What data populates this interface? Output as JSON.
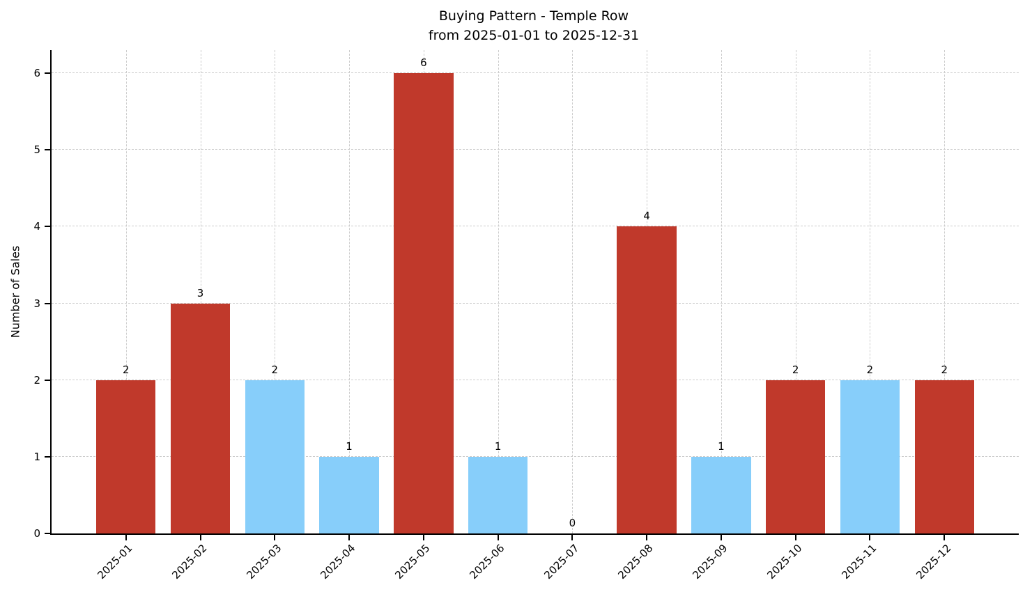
{
  "chart_data": {
    "type": "bar",
    "title": "Buying Pattern - Temple Row\nfrom 2025-01-01 to 2025-12-31",
    "title_lines": [
      "Buying Pattern - Temple Row",
      "from 2025-01-01 to 2025-12-31"
    ],
    "categories": [
      "2025-01",
      "2025-02",
      "2025-03",
      "2025-04",
      "2025-05",
      "2025-06",
      "2025-07",
      "2025-08",
      "2025-09",
      "2025-10",
      "2025-11",
      "2025-12"
    ],
    "values": [
      2,
      3,
      2,
      1,
      6,
      1,
      0,
      4,
      1,
      2,
      2,
      2
    ],
    "bar_colors": [
      "#c0392b",
      "#c0392b",
      "#87cefa",
      "#87cefa",
      "#c0392b",
      "#87cefa",
      "#87cefa",
      "#c0392b",
      "#87cefa",
      "#c0392b",
      "#87cefa",
      "#c0392b"
    ],
    "value_labels": [
      "2",
      "3",
      "2",
      "1",
      "6",
      "1",
      "0",
      "4",
      "1",
      "2",
      "2",
      "2"
    ],
    "xlabel": "",
    "ylabel": "Number of Sales",
    "ylim": [
      0,
      6.3
    ],
    "yticks": [
      0,
      1,
      2,
      3,
      4,
      5,
      6
    ],
    "grid": true,
    "grid_style": "dashed",
    "x_tick_rotation": 45,
    "legend": null,
    "colors": {
      "red_bar": "#c0392b",
      "blue_bar": "#87cefa",
      "axis": "#000000",
      "grid": "#cccccc",
      "background": "#ffffff"
    }
  }
}
